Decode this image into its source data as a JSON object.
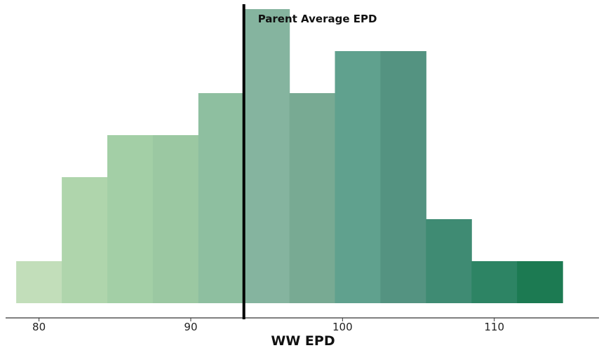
{
  "chart_data": {
    "type": "bar",
    "subtype": "histogram",
    "xlabel": "WW EPD",
    "ylabel": "",
    "xlim": [
      77.8,
      116.9
    ],
    "ylim": [
      0,
      7
    ],
    "x_ticks": [
      80,
      90,
      100,
      110
    ],
    "grid": false,
    "legend": "none",
    "bins": [
      {
        "start": 78.5,
        "end": 81.5,
        "count": 1,
        "color": "#c2deba"
      },
      {
        "start": 81.5,
        "end": 84.5,
        "count": 3,
        "color": "#afd5ac"
      },
      {
        "start": 84.5,
        "end": 87.5,
        "count": 4,
        "color": "#a3cfa6"
      },
      {
        "start": 87.5,
        "end": 90.5,
        "count": 4,
        "color": "#9bc8a2"
      },
      {
        "start": 90.5,
        "end": 93.5,
        "count": 5,
        "color": "#8ebfa0"
      },
      {
        "start": 93.5,
        "end": 96.5,
        "count": 7,
        "color": "#85b49f"
      },
      {
        "start": 96.5,
        "end": 99.5,
        "count": 5,
        "color": "#78aa93"
      },
      {
        "start": 99.5,
        "end": 102.5,
        "count": 6,
        "color": "#60a18e"
      },
      {
        "start": 102.5,
        "end": 105.5,
        "count": 6,
        "color": "#549381"
      },
      {
        "start": 105.5,
        "end": 108.5,
        "count": 2,
        "color": "#3f8b73"
      },
      {
        "start": 108.5,
        "end": 111.5,
        "count": 1,
        "color": "#2d8464"
      },
      {
        "start": 111.5,
        "end": 114.5,
        "count": 1,
        "color": "#1c7a52"
      }
    ],
    "reference_line": {
      "x": 93.5,
      "label": "Parent Average EPD",
      "color": "#000000"
    }
  }
}
